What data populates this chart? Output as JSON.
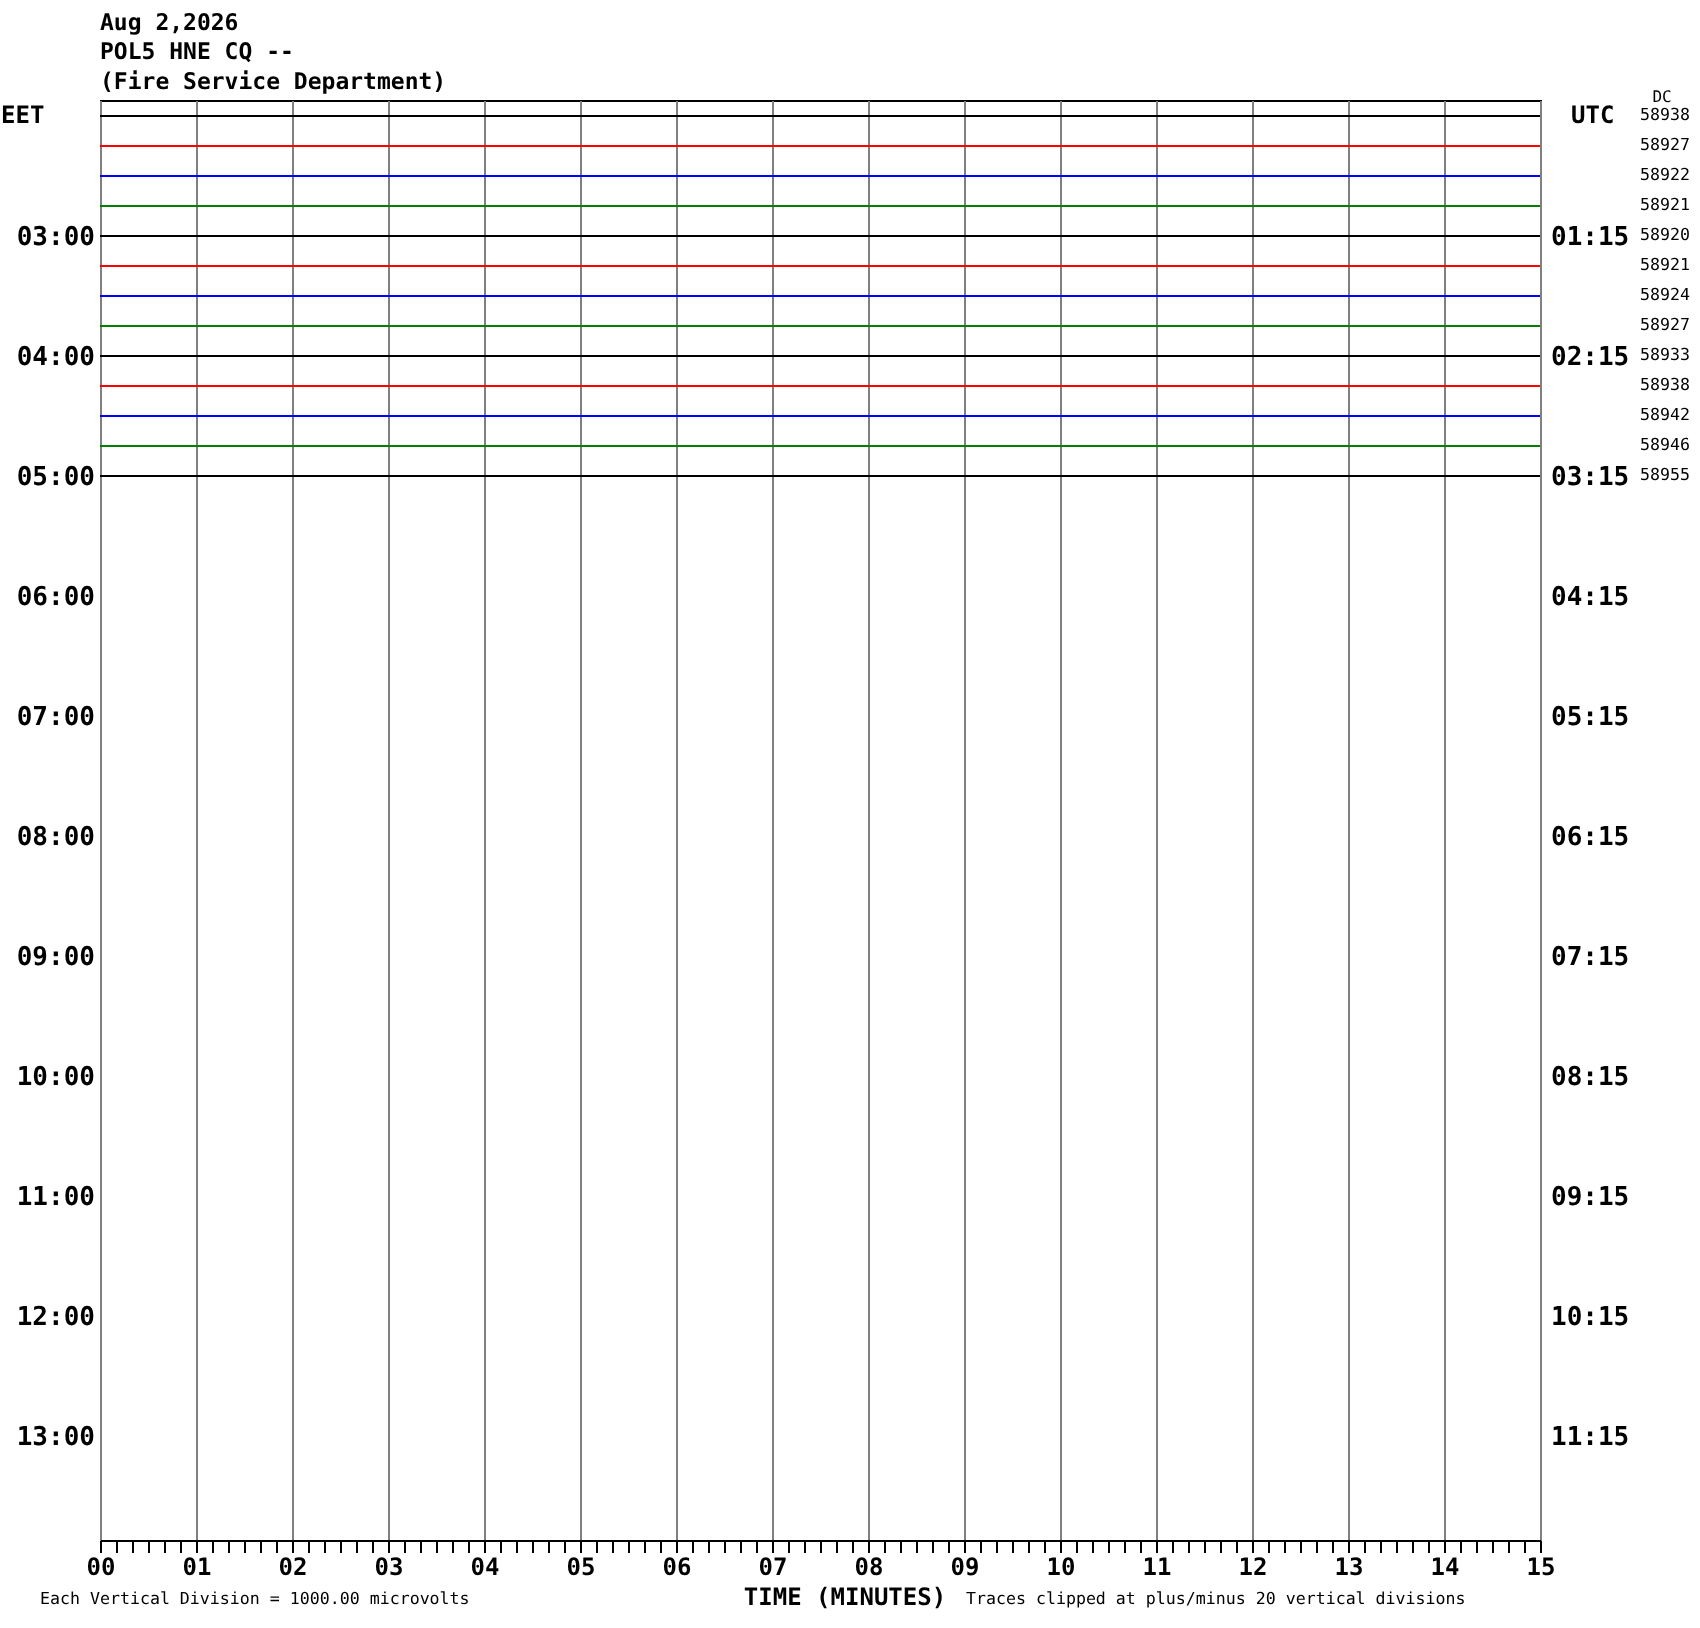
{
  "chart_data": {
    "type": "line",
    "title": "Aug 2,2026",
    "subtitle": "POL5 HNE CQ --\n(Fire Service Department)",
    "xlabel": "TIME (MINUTES)",
    "ylabel": "EET",
    "y2label": "UTC",
    "x": [
      0,
      15
    ],
    "series": [
      {
        "color": "#000000",
        "values": [
          2.0,
          2.0
        ]
      },
      {
        "color": "#ff0000",
        "values": [
          2.25,
          2.25
        ]
      },
      {
        "color": "#0000ff",
        "values": [
          2.5,
          2.5
        ]
      },
      {
        "color": "#008000",
        "values": [
          2.75,
          2.75
        ]
      },
      {
        "color": "#000000",
        "values": [
          3.0,
          3.0
        ]
      },
      {
        "color": "#ff0000",
        "values": [
          3.25,
          3.25
        ]
      },
      {
        "color": "#0000ff",
        "values": [
          3.5,
          3.5
        ]
      },
      {
        "color": "#008000",
        "values": [
          3.75,
          3.75
        ]
      },
      {
        "color": "#000000",
        "values": [
          4.0,
          4.0
        ]
      },
      {
        "color": "#ff0000",
        "values": [
          4.25,
          4.25
        ]
      },
      {
        "color": "#0000ff",
        "values": [
          4.5,
          4.5
        ]
      },
      {
        "color": "#008000",
        "values": [
          4.75,
          4.75
        ]
      },
      {
        "color": "#000000",
        "values": [
          5.0,
          5.0
        ]
      }
    ],
    "xlim": [
      0,
      15
    ],
    "xticks": [
      {
        "value": 0,
        "label": "00"
      },
      {
        "value": 0.167,
        "label": null
      },
      {
        "value": 0.333,
        "label": null
      },
      {
        "value": 0.5,
        "label": null
      },
      {
        "value": 0.667,
        "label": null
      },
      {
        "value": 0.833,
        "label": null
      },
      {
        "value": 1,
        "label": "01"
      },
      {
        "value": 1.167,
        "label": null
      },
      {
        "value": 1.333,
        "label": null
      },
      {
        "value": 1.5,
        "label": null
      },
      {
        "value": 1.667,
        "label": null
      },
      {
        "value": 1.833,
        "label": null
      },
      {
        "value": 2,
        "label": "02"
      },
      {
        "value": 2.167,
        "label": null
      },
      {
        "value": 2.333,
        "label": null
      },
      {
        "value": 2.5,
        "label": null
      },
      {
        "value": 2.667,
        "label": null
      },
      {
        "value": 2.833,
        "label": null
      },
      {
        "value": 3,
        "label": "03"
      },
      {
        "value": 3.167,
        "label": null
      },
      {
        "value": 3.333,
        "label": null
      },
      {
        "value": 3.5,
        "label": null
      },
      {
        "value": 3.667,
        "label": null
      },
      {
        "value": 3.833,
        "label": null
      },
      {
        "value": 4,
        "label": "04"
      },
      {
        "value": 4.167,
        "label": null
      },
      {
        "value": 4.333,
        "label": null
      },
      {
        "value": 4.5,
        "label": null
      },
      {
        "value": 4.667,
        "label": null
      },
      {
        "value": 4.833,
        "label": null
      },
      {
        "value": 5,
        "label": "05"
      },
      {
        "value": 5.167,
        "label": null
      },
      {
        "value": 5.333,
        "label": null
      },
      {
        "value": 5.5,
        "label": null
      },
      {
        "value": 5.667,
        "label": null
      },
      {
        "value": 5.833,
        "label": null
      },
      {
        "value": 6,
        "label": "06"
      },
      {
        "value": 6.167,
        "label": null
      },
      {
        "value": 6.333,
        "label": null
      },
      {
        "value": 6.5,
        "label": null
      },
      {
        "value": 6.667,
        "label": null
      },
      {
        "value": 6.833,
        "label": null
      },
      {
        "value": 7,
        "label": "07"
      },
      {
        "value": 7.167,
        "label": null
      },
      {
        "value": 7.333,
        "label": null
      },
      {
        "value": 7.5,
        "label": null
      },
      {
        "value": 7.667,
        "label": null
      },
      {
        "value": 7.833,
        "label": null
      },
      {
        "value": 8,
        "label": "08"
      },
      {
        "value": 8.167,
        "label": null
      },
      {
        "value": 8.333,
        "label": null
      },
      {
        "value": 8.5,
        "label": null
      },
      {
        "value": 8.667,
        "label": null
      },
      {
        "value": 8.833,
        "label": null
      },
      {
        "value": 9,
        "label": "09"
      },
      {
        "value": 9.167,
        "label": null
      },
      {
        "value": 9.333,
        "label": null
      },
      {
        "value": 9.5,
        "label": null
      },
      {
        "value": 9.667,
        "label": null
      },
      {
        "value": 9.833,
        "label": null
      },
      {
        "value": 10,
        "label": "10"
      },
      {
        "value": 10.167,
        "label": null
      },
      {
        "value": 10.333,
        "label": null
      },
      {
        "value": 10.5,
        "label": null
      },
      {
        "value": 10.667,
        "label": null
      },
      {
        "value": 10.833,
        "label": null
      },
      {
        "value": 11,
        "label": "11"
      },
      {
        "value": 11.167,
        "label": null
      },
      {
        "value": 11.333,
        "label": null
      },
      {
        "value": 11.5,
        "label": null
      },
      {
        "value": 11.667,
        "label": null
      },
      {
        "value": 11.833,
        "label": null
      },
      {
        "value": 12,
        "label": "12"
      },
      {
        "value": 12.167,
        "label": null
      },
      {
        "value": 12.333,
        "label": null
      },
      {
        "value": 12.5,
        "label": null
      },
      {
        "value": 12.667,
        "label": null
      },
      {
        "value": 12.833,
        "label": null
      },
      {
        "value": 13,
        "label": "13"
      },
      {
        "value": 13.167,
        "label": null
      },
      {
        "value": 13.333,
        "label": null
      },
      {
        "value": 13.5,
        "label": null
      },
      {
        "value": 13.667,
        "label": null
      },
      {
        "value": 13.833,
        "label": null
      },
      {
        "value": 14,
        "label": "14"
      },
      {
        "value": 14.167,
        "label": null
      },
      {
        "value": 14.333,
        "label": null
      },
      {
        "value": 14.5,
        "label": null
      },
      {
        "value": 14.667,
        "label": null
      },
      {
        "value": 14.833,
        "label": null
      },
      {
        "value": 15,
        "label": "15"
      }
    ],
    "ylim": [
      13.867,
      1.867
    ],
    "yticks": [
      {
        "value": 3,
        "label": "03:00"
      },
      {
        "value": 4,
        "label": "04:00"
      },
      {
        "value": 5,
        "label": "05:00"
      },
      {
        "value": 6,
        "label": "06:00"
      },
      {
        "value": 7,
        "label": "07:00"
      },
      {
        "value": 8,
        "label": "08:00"
      },
      {
        "value": 9,
        "label": "09:00"
      },
      {
        "value": 10,
        "label": "10:00"
      },
      {
        "value": 11,
        "label": "11:00"
      },
      {
        "value": 12,
        "label": "12:00"
      },
      {
        "value": 13,
        "label": "13:00"
      }
    ],
    "y2lim": [
      12.117,
      0.117
    ],
    "y2ticks": [
      {
        "value": 1.25,
        "label": "01:15"
      },
      {
        "value": 2.25,
        "label": "02:15"
      },
      {
        "value": 3.25,
        "label": "03:15"
      },
      {
        "value": 4.25,
        "label": "04:15"
      },
      {
        "value": 5.25,
        "label": "05:15"
      },
      {
        "value": 6.25,
        "label": "06:15"
      },
      {
        "value": 7.25,
        "label": "07:15"
      },
      {
        "value": 8.25,
        "label": "08:15"
      },
      {
        "value": 9.25,
        "label": "09:15"
      },
      {
        "value": 10.25,
        "label": "10:15"
      },
      {
        "value": 11.25,
        "label": "11:15"
      }
    ],
    "grid": "x",
    "annotations": [
      "Each Vertical Division = 1000.00 microvolts",
      "Traces clipped at plus/minus 20 vertical divisions",
      "DC",
      "58938",
      "58927",
      "58922",
      "58921",
      "58920",
      "58921",
      "58924",
      "58927",
      "58933",
      "58938",
      "58942",
      "58946",
      "58955"
    ]
  }
}
